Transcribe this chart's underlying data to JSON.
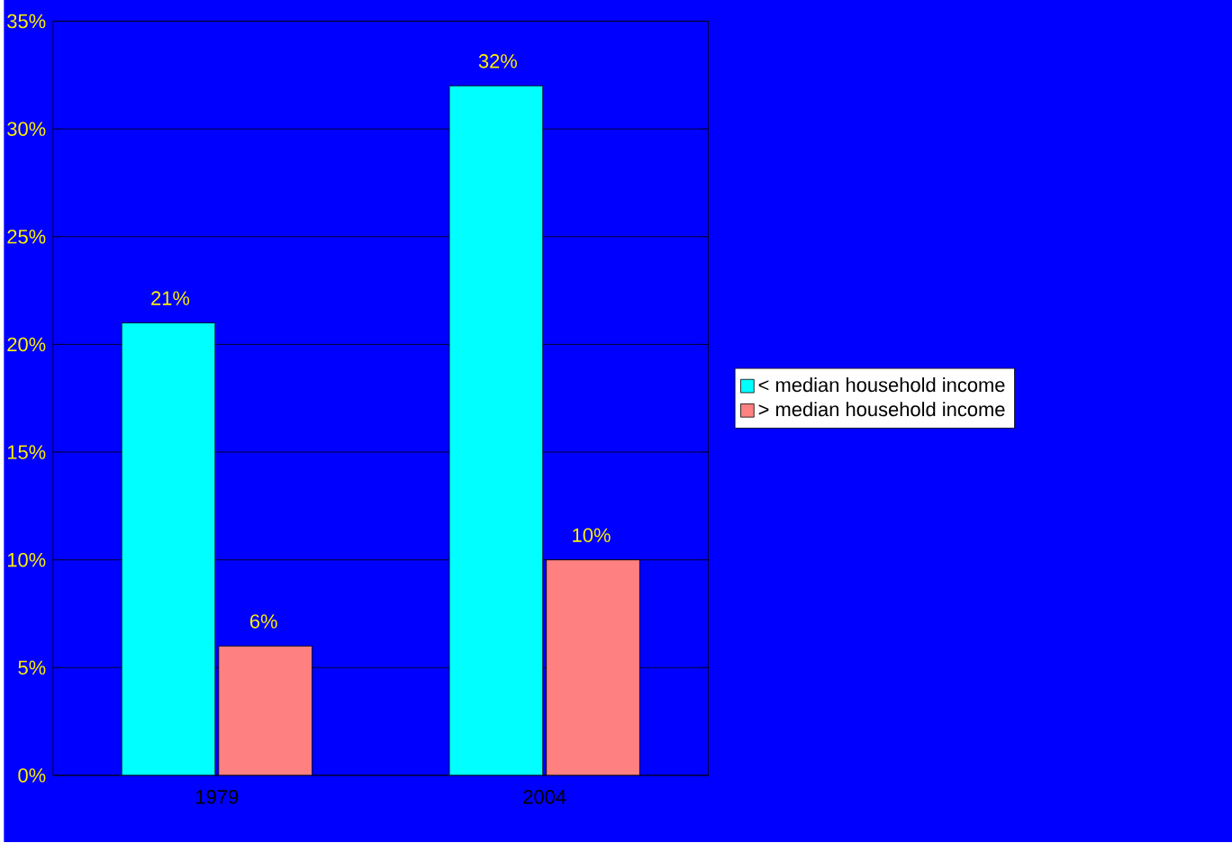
{
  "chart_data": {
    "type": "bar",
    "categories": [
      "1979",
      "2004"
    ],
    "series": [
      {
        "name": "< median household income",
        "color": "#00ffff",
        "values": [
          21,
          32
        ],
        "value_labels": [
          "21%",
          "32%"
        ]
      },
      {
        "name": "> median household income",
        "color": "#ff8080",
        "values": [
          6,
          10
        ],
        "value_labels": [
          "6%",
          "10%"
        ]
      }
    ],
    "ylim": [
      0,
      35
    ],
    "yticks": [
      {
        "value": 0,
        "label": "0%"
      },
      {
        "value": 5,
        "label": "5%"
      },
      {
        "value": 10,
        "label": "10%"
      },
      {
        "value": 15,
        "label": "15%"
      },
      {
        "value": 20,
        "label": "20%"
      },
      {
        "value": 25,
        "label": "25%"
      },
      {
        "value": 30,
        "label": "30%"
      },
      {
        "value": 35,
        "label": "35%"
      }
    ],
    "grid": "y",
    "legend": "right"
  }
}
